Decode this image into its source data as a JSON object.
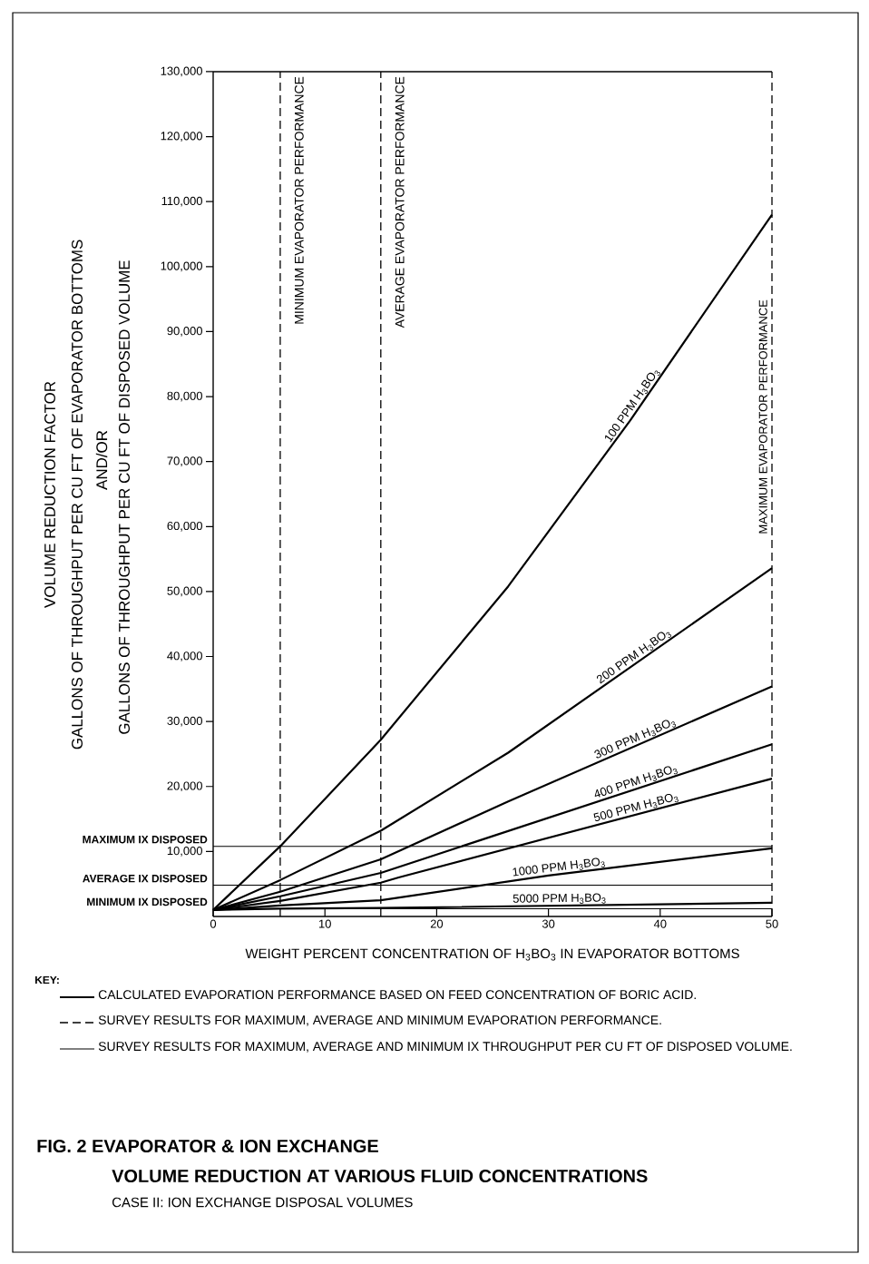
{
  "chart_data": {
    "type": "line",
    "title": "FIG. 2 EVAPORATOR & ION EXCHANGE",
    "subtitle": "VOLUME REDUCTION AT VARIOUS FLUID CONCENTRATIONS",
    "xlabel": "WEIGHT PERCENT CONCENTRATION OF H$_{3}$BO$_{3}$ IN EVAPORATOR BOTTOMS",
    "ylabel": "GALLONS OF THROUGHPUT PER CU FT OF DISPOSED VOLUME",
    "annotations": [
      "VOLUME REDUCTION FACTOR",
      "GALLONS OF THROUGHPUT PER CU FT OF EVAPORATOR BOTTOMS",
      "AND/OR",
      "KEY:",
      "CALCULATED EVAPORATION PERFORMANCE BASED ON FEED CONCENTRATION OF BORIC ACID.",
      "SURVEY RESULTS FOR MAXIMUM, AVERAGE AND MINIMUM EVAPORATION PERFORMANCE.",
      "SURVEY RESULTS FOR MAXIMUM, AVERAGE AND MINIMUM IX THROUGHPUT PER CU FT OF DISPOSED VOLUME.",
      "CASE II: ION EXCHANGE DISPOSAL VOLUMES"
    ],
    "xlim": [
      0,
      50
    ],
    "ylim": [
      0,
      130000
    ],
    "xticks": [
      0,
      10,
      20,
      30,
      40,
      50
    ],
    "yticks": [
      {
        "value": 10000,
        "label": "10,000"
      },
      {
        "value": 20000,
        "label": "20,000"
      },
      {
        "value": 30000,
        "label": "30,000"
      },
      {
        "value": 40000,
        "label": "40,000"
      },
      {
        "value": 50000,
        "label": "50,000"
      },
      {
        "value": 60000,
        "label": "60,000"
      },
      {
        "value": 70000,
        "label": "70,000"
      },
      {
        "value": 80000,
        "label": "80,000"
      },
      {
        "value": 90000,
        "label": "90,000"
      },
      {
        "value": 100000,
        "label": "100,000"
      },
      {
        "value": 110000,
        "label": "110,000"
      },
      {
        "value": 120000,
        "label": "120,000"
      },
      {
        "value": 130000,
        "label": "130,000"
      }
    ],
    "marker": "none",
    "line_style": "solid",
    "series": [
      {
        "name": "100 PPM H$_{3}$BO$_{3}$",
        "color": "#000000",
        "x": [
          0,
          6,
          15,
          26.4,
          37.3,
          50
        ],
        "values": [
          1000,
          10800,
          27200,
          50800,
          76300,
          108000
        ]
      },
      {
        "name": "200 PPM H$_{3}$BO$_{3}$",
        "color": "#000000",
        "x": [
          0,
          6,
          15,
          26.4,
          50
        ],
        "values": [
          1000,
          5600,
          13200,
          25200,
          53600
        ]
      },
      {
        "name": "300 PPM H$_{3}$BO$_{3}$",
        "color": "#000000",
        "x": [
          0,
          6,
          15,
          26.4,
          50
        ],
        "values": [
          1000,
          3800,
          8800,
          17700,
          35400
        ]
      },
      {
        "name": "400 PPM H$_{3}$BO$_{3}$",
        "color": "#000000",
        "x": [
          0,
          6,
          15,
          50
        ],
        "values": [
          1000,
          3100,
          6700,
          26500
        ]
      },
      {
        "name": "500 PPM H$_{3}$BO$_{3}$",
        "color": "#000000",
        "x": [
          0,
          6,
          15,
          16.6,
          50
        ],
        "values": [
          1000,
          2400,
          5200,
          6000,
          21200
        ]
      },
      {
        "name": "1000 PPM H$_{3}$BO$_{3}$",
        "color": "#000000",
        "x": [
          0,
          6,
          15,
          30,
          50
        ],
        "values": [
          1000,
          1700,
          2500,
          6300,
          10500
        ]
      },
      {
        "name": "5000 PPM H$_{3}$BO$_{3}$",
        "color": "#000000",
        "x": [
          0,
          6,
          15,
          50
        ],
        "values": [
          1000,
          1200,
          1300,
          2100
        ]
      }
    ],
    "ref_lines": [
      {
        "axis": "x",
        "value": 6,
        "label": "MINIMUM EVAPORATOR PERFORMANCE",
        "line_style": "dashed",
        "color": "#000000"
      },
      {
        "axis": "x",
        "value": 15,
        "label": "AVERAGE EVAPORATOR PERFORMANCE",
        "line_style": "dashed",
        "color": "#000000"
      },
      {
        "axis": "x",
        "value": 50,
        "label": "MAXIMUM EVAPORATOR PERFORMANCE",
        "line_style": "dashed",
        "color": "#000000"
      },
      {
        "axis": "y",
        "value": 10800,
        "label": "MAXIMUM IX DISPOSED",
        "line_style": "solid",
        "color": "#000000"
      },
      {
        "axis": "y",
        "value": 4800,
        "label": "AVERAGE IX DISPOSED",
        "line_style": "solid",
        "color": "#000000"
      },
      {
        "axis": "y",
        "value": 1200,
        "label": "MINIMUM IX DISPOSED",
        "line_style": "solid",
        "color": "#000000"
      }
    ]
  }
}
